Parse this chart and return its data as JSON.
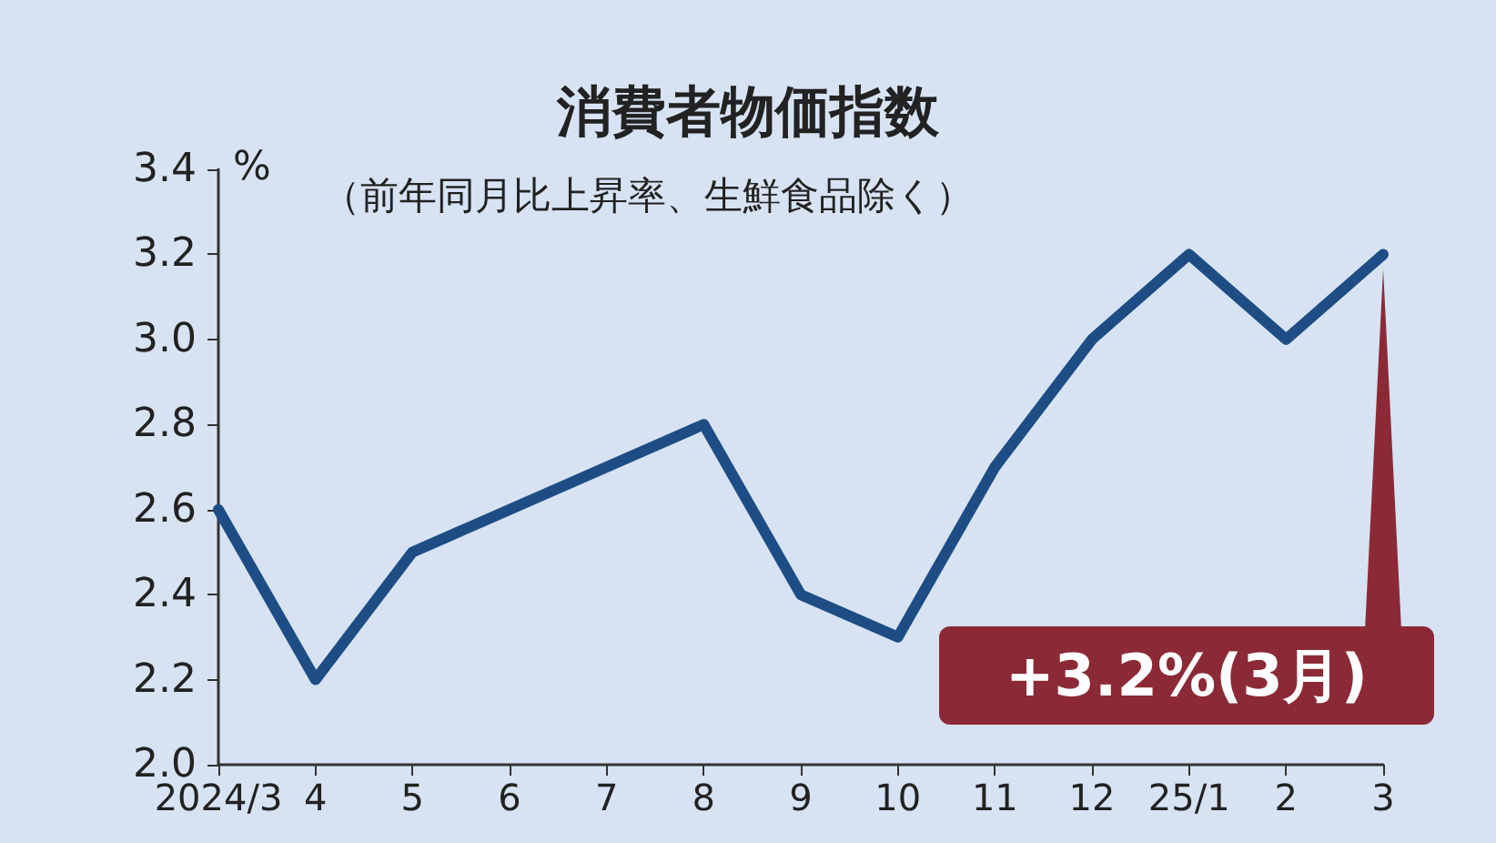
{
  "chart_data": {
    "type": "line",
    "title": "消費者物価指数",
    "subtitle": "（前年同月比上昇率、生鮮食品除く）",
    "ylabel": "%",
    "categories": [
      "2024/3",
      "4",
      "5",
      "6",
      "7",
      "8",
      "9",
      "10",
      "11",
      "12",
      "25/1",
      "2",
      "3"
    ],
    "series": [
      {
        "color": "#1e4d85",
        "values": [
          2.6,
          2.2,
          2.5,
          2.6,
          2.7,
          2.8,
          2.4,
          2.3,
          2.7,
          3.0,
          3.2,
          3.0,
          3.2
        ]
      }
    ],
    "ylim": [
      2.0,
      3.4
    ],
    "yticks": [
      {
        "value": 2.0,
        "label": "2.0"
      },
      {
        "value": 2.2,
        "label": "2.2"
      },
      {
        "value": 2.4,
        "label": "2.4"
      },
      {
        "value": 2.6,
        "label": "2.6"
      },
      {
        "value": 2.8,
        "label": "2.8"
      },
      {
        "value": 3.0,
        "label": "3.0"
      },
      {
        "value": 3.2,
        "label": "3.2"
      },
      {
        "value": 3.4,
        "label": "3.4"
      }
    ],
    "grid": false,
    "marker": "none",
    "line_style": "solid",
    "annotations": [
      {
        "text": "+3.2%(3月)",
        "x": "3",
        "y": 3.2
      }
    ]
  }
}
